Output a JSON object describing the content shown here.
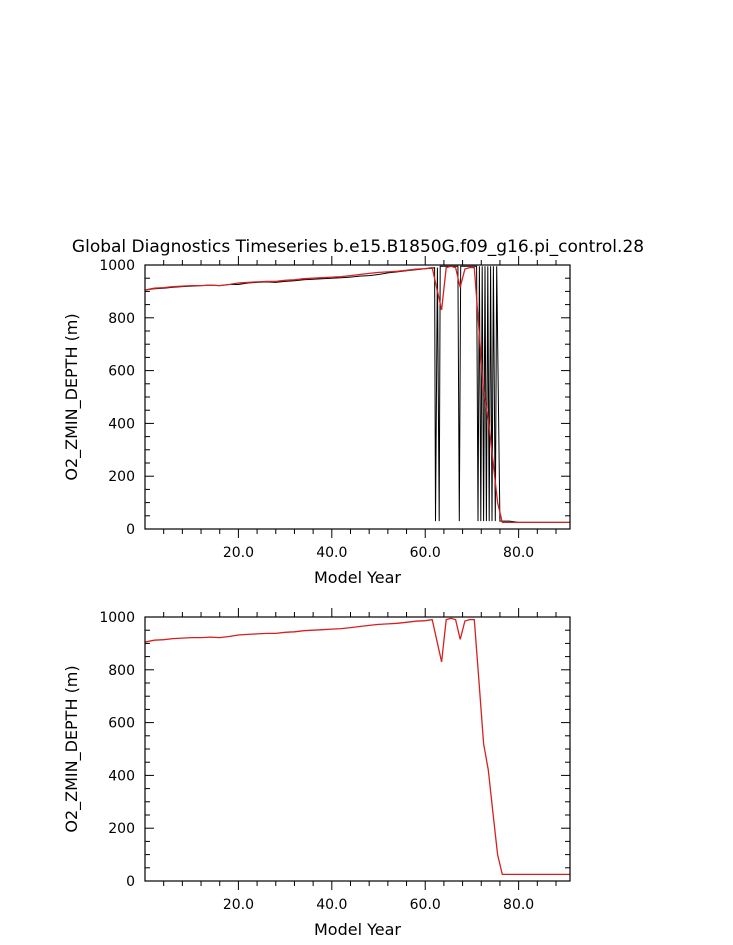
{
  "title": "Global Diagnostics Timeseries b.e15.B1850G.f09_g16.pi_control.28",
  "colors": {
    "axis": "#000000",
    "monthly": "#000000",
    "annual": "#d62020"
  },
  "chart_data": [
    {
      "type": "line",
      "title": "Global Diagnostics Timeseries b.e15.B1850G.f09_g16.pi_control.28",
      "xlabel": "Model Year",
      "ylabel": "O2_ZMIN_DEPTH (m)",
      "xlim": [
        0,
        91
      ],
      "ylim": [
        0,
        1000
      ],
      "xticks": [
        "20.0",
        "40.0",
        "60.0",
        "80.0"
      ],
      "yticks": [
        "0",
        "200",
        "400",
        "600",
        "800",
        "1000"
      ],
      "series": [
        {
          "role": "monthly",
          "color": "#000000",
          "x": [
            0,
            2,
            4,
            6,
            8,
            10,
            12,
            14,
            16,
            18,
            20,
            22,
            24,
            26,
            28,
            30,
            32,
            34,
            36,
            38,
            40,
            42,
            44,
            46,
            48,
            50,
            52,
            54,
            56,
            58,
            60,
            61.5,
            62,
            62.2,
            62.6,
            63.0,
            63.2,
            63.6,
            65,
            67,
            67.3,
            67.6,
            68,
            70,
            71.0,
            71.3,
            71.6,
            71.9,
            72.2,
            72.5,
            72.8,
            73.1,
            73.4,
            73.7,
            74.0,
            74.3,
            74.6,
            75.0,
            75.3,
            76,
            78,
            80,
            85,
            91
          ],
          "y": [
            905,
            910,
            912,
            916,
            918,
            920,
            922,
            924,
            922,
            926,
            926,
            932,
            934,
            936,
            934,
            938,
            940,
            944,
            946,
            948,
            950,
            952,
            954,
            958,
            960,
            964,
            970,
            974,
            978,
            982,
            986,
            988,
            990,
            30,
            990,
            30,
            995,
            995,
            995,
            995,
            30,
            995,
            995,
            995,
            995,
            30,
            995,
            30,
            995,
            30,
            995,
            30,
            995,
            30,
            995,
            30,
            995,
            30,
            995,
            30,
            30,
            25,
            25,
            25
          ]
        },
        {
          "role": "annual",
          "color": "#d62020",
          "x": [
            0,
            2,
            4,
            6,
            8,
            10,
            12,
            14,
            16,
            18,
            20,
            22,
            24,
            26,
            28,
            30,
            32,
            34,
            36,
            38,
            40,
            42,
            44,
            46,
            48,
            50,
            52,
            54,
            56,
            58,
            60,
            61.5,
            62.5,
            63.5,
            64.5,
            65.5,
            66.5,
            67.5,
            68.5,
            69.5,
            70.5,
            71.5,
            72.5,
            73.5,
            74.5,
            75.5,
            76.5,
            77.5,
            78.5,
            80,
            85,
            91
          ],
          "y": [
            905,
            912,
            914,
            918,
            920,
            922,
            922,
            924,
            922,
            926,
            932,
            934,
            936,
            938,
            938,
            942,
            944,
            948,
            950,
            952,
            954,
            956,
            960,
            964,
            968,
            972,
            974,
            976,
            980,
            984,
            986,
            990,
            910,
            830,
            990,
            995,
            990,
            915,
            985,
            990,
            990,
            760,
            520,
            420,
            260,
            100,
            25,
            25,
            25,
            25,
            25,
            25
          ]
        }
      ]
    },
    {
      "type": "line",
      "xlabel": "Model Year",
      "ylabel": "O2_ZMIN_DEPTH (m)",
      "xlim": [
        0,
        91
      ],
      "ylim": [
        0,
        1000
      ],
      "xticks": [
        "20.0",
        "40.0",
        "60.0",
        "80.0"
      ],
      "yticks": [
        "0",
        "200",
        "400",
        "600",
        "800",
        "1000"
      ],
      "series": [
        {
          "role": "annual",
          "color": "#d62020",
          "x": [
            0,
            2,
            4,
            6,
            8,
            10,
            12,
            14,
            16,
            18,
            20,
            22,
            24,
            26,
            28,
            30,
            32,
            34,
            36,
            38,
            40,
            42,
            44,
            46,
            48,
            50,
            52,
            54,
            56,
            58,
            60,
            61.5,
            62.5,
            63.5,
            64.5,
            65.5,
            66.5,
            67.5,
            68.5,
            69.5,
            70.5,
            71.5,
            72.5,
            73.5,
            74.5,
            75.5,
            76.5,
            77.5,
            78.5,
            80,
            85,
            91
          ],
          "y": [
            905,
            912,
            914,
            918,
            920,
            922,
            922,
            924,
            922,
            926,
            932,
            934,
            936,
            938,
            938,
            942,
            944,
            948,
            950,
            952,
            954,
            956,
            960,
            964,
            968,
            972,
            974,
            976,
            980,
            984,
            986,
            990,
            910,
            830,
            990,
            995,
            990,
            915,
            985,
            990,
            990,
            760,
            520,
            420,
            260,
            100,
            25,
            25,
            25,
            25,
            25,
            25
          ]
        }
      ]
    }
  ]
}
